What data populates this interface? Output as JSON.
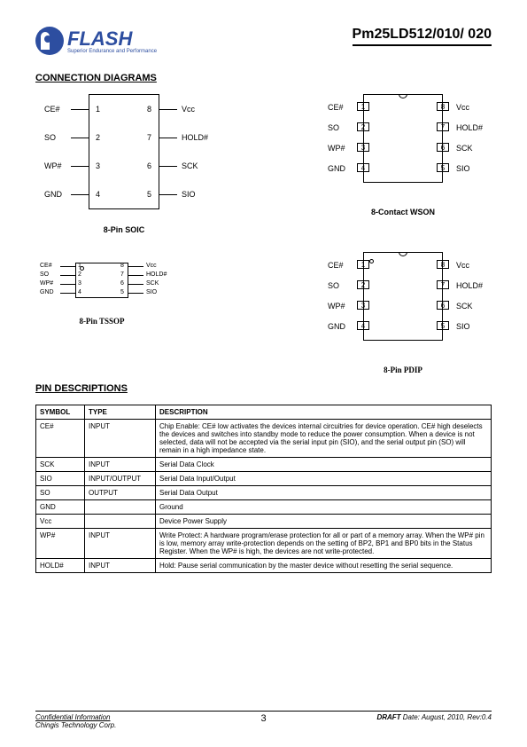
{
  "header": {
    "logo_text": "FLASH",
    "logo_sub": "Superior Endurance and Performance",
    "part_number": "Pm25LD512/010/ 020"
  },
  "sections": {
    "connection_title": "CONNECTION DIAGRAMS",
    "pin_desc_title": "PIN DESCRIPTIONS"
  },
  "packages": {
    "soic": {
      "caption": "8-Pin SOIC",
      "left_pins": [
        "CE#",
        "SO",
        "WP#",
        "GND"
      ],
      "left_nums": [
        "1",
        "2",
        "3",
        "4"
      ],
      "right_pins": [
        "Vcc",
        "HOLD#",
        "SCK",
        "SIO"
      ],
      "right_nums": [
        "8",
        "7",
        "6",
        "5"
      ]
    },
    "wson": {
      "caption": "8-Contact WSON",
      "left_pins": [
        "CE#",
        "SO",
        "WP#",
        "GND"
      ],
      "left_nums": [
        "1",
        "2",
        "3",
        "4"
      ],
      "right_pins": [
        "Vcc",
        "HOLD#",
        "SCK",
        "SIO"
      ],
      "right_nums": [
        "8",
        "7",
        "6",
        "5"
      ]
    },
    "tssop": {
      "caption": "8-Pin TSSOP",
      "left_pins": [
        "CE#",
        "SO",
        "WP#",
        "GND"
      ],
      "left_nums": [
        "1",
        "2",
        "3",
        "4"
      ],
      "right_pins": [
        "Vcc",
        "HOLD#",
        "SCK",
        "SIO"
      ],
      "right_nums": [
        "8",
        "7",
        "6",
        "5"
      ]
    },
    "pdip": {
      "caption": "8-Pin PDIP",
      "left_pins": [
        "CE#",
        "SO",
        "WP#",
        "GND"
      ],
      "left_nums": [
        "1",
        "2",
        "3",
        "4"
      ],
      "right_pins": [
        "Vcc",
        "HOLD#",
        "SCK",
        "SIO"
      ],
      "right_nums": [
        "8",
        "7",
        "6",
        "5"
      ]
    }
  },
  "pin_table": {
    "headers": [
      "SYMBOL",
      "TYPE",
      "DESCRIPTION"
    ],
    "rows": [
      [
        "CE#",
        "INPUT",
        "Chip Enable: CE# low activates the devices internal circuitries for device operation. CE# high deselects the devices and switches into standby mode to reduce the power consumption. When a device is not selected, data will not be accepted via the serial input pin (SIO), and the serial output pin (SO) will remain in a high impedance state."
      ],
      [
        "SCK",
        "INPUT",
        "Serial Data Clock"
      ],
      [
        "SIO",
        "INPUT/OUTPUT",
        "Serial Data Input/Output"
      ],
      [
        "SO",
        "OUTPUT",
        "Serial Data Output"
      ],
      [
        "GND",
        "",
        "Ground"
      ],
      [
        "Vcc",
        "",
        "Device Power Supply"
      ],
      [
        "WP#",
        "INPUT",
        "Write Protect: A hardware program/erase protection for all or part of a memory array. When the WP# pin is low, memory array write-protection depends on the setting of BP2, BP1 and BP0 bits in the Status Register. When the WP# is high, the devices are not write-protected."
      ],
      [
        "HOLD#",
        "INPUT",
        "Hold: Pause serial communication by the master device without resetting the serial sequence."
      ]
    ]
  },
  "footer": {
    "confidential": "Confidential Information",
    "company": "Chingis Technology Corp.",
    "page": "3",
    "draft": "DRAFT",
    "date": "Date: August, 2010, Rev:0.4"
  }
}
